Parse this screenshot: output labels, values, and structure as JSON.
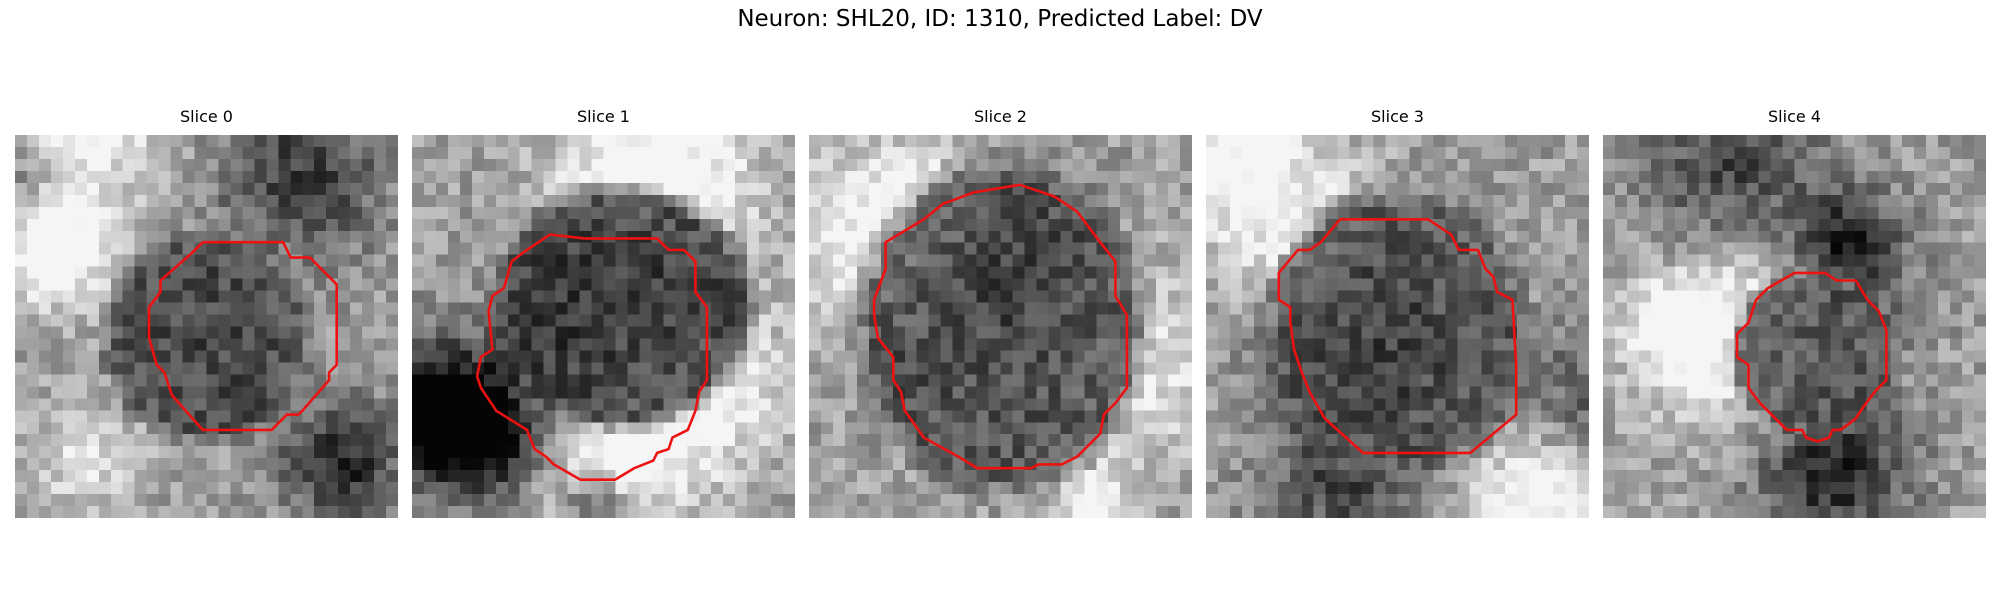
{
  "figure": {
    "title": "Neuron: SHL20, ID: 1310, Predicted Label: DV"
  },
  "outline_color": "#ee1111",
  "panels": [
    {
      "title": "Slice 0",
      "image": "grayscale-microscopy-patch",
      "center": [
        0.5,
        0.53
      ],
      "radius": [
        0.24,
        0.24
      ],
      "cell_shade": [
        0.22,
        0.28
      ],
      "outline": [
        [
          0.49,
          0.28
        ],
        [
          0.7,
          0.28
        ],
        [
          0.72,
          0.32
        ],
        [
          0.77,
          0.32
        ],
        [
          0.84,
          0.39
        ],
        [
          0.84,
          0.6
        ],
        [
          0.82,
          0.62
        ],
        [
          0.82,
          0.64
        ],
        [
          0.75,
          0.72
        ],
        [
          0.74,
          0.73
        ],
        [
          0.71,
          0.73
        ],
        [
          0.67,
          0.77
        ],
        [
          0.49,
          0.77
        ],
        [
          0.41,
          0.68
        ],
        [
          0.39,
          0.62
        ],
        [
          0.37,
          0.6
        ],
        [
          0.35,
          0.53
        ],
        [
          0.35,
          0.45
        ],
        [
          0.38,
          0.41
        ],
        [
          0.38,
          0.38
        ],
        [
          0.46,
          0.31
        ],
        [
          0.49,
          0.28
        ]
      ]
    },
    {
      "title": "Slice 1",
      "image": "grayscale-microscopy-patch",
      "center": [
        0.55,
        0.45
      ],
      "radius": [
        0.3,
        0.28
      ],
      "cell_shade": [
        0.12,
        0.2
      ],
      "outline": [
        [
          0.45,
          0.27
        ],
        [
          0.64,
          0.27
        ],
        [
          0.67,
          0.3
        ],
        [
          0.71,
          0.3
        ],
        [
          0.74,
          0.33
        ],
        [
          0.74,
          0.41
        ],
        [
          0.77,
          0.45
        ],
        [
          0.77,
          0.64
        ],
        [
          0.75,
          0.67
        ],
        [
          0.74,
          0.72
        ],
        [
          0.72,
          0.77
        ],
        [
          0.68,
          0.79
        ],
        [
          0.67,
          0.82
        ],
        [
          0.64,
          0.83
        ],
        [
          0.63,
          0.85
        ],
        [
          0.58,
          0.87
        ],
        [
          0.53,
          0.9
        ],
        [
          0.44,
          0.9
        ],
        [
          0.37,
          0.86
        ],
        [
          0.35,
          0.84
        ],
        [
          0.32,
          0.82
        ],
        [
          0.3,
          0.77
        ],
        [
          0.22,
          0.72
        ],
        [
          0.18,
          0.66
        ],
        [
          0.17,
          0.63
        ],
        [
          0.18,
          0.58
        ],
        [
          0.21,
          0.56
        ],
        [
          0.2,
          0.46
        ],
        [
          0.21,
          0.42
        ],
        [
          0.24,
          0.4
        ],
        [
          0.26,
          0.33
        ],
        [
          0.3,
          0.3
        ],
        [
          0.36,
          0.26
        ],
        [
          0.45,
          0.27
        ]
      ]
    },
    {
      "title": "Slice 2",
      "image": "grayscale-microscopy-patch",
      "center": [
        0.5,
        0.5
      ],
      "radius": [
        0.33,
        0.38
      ],
      "cell_shade": [
        0.25,
        0.3
      ],
      "outline": [
        [
          0.43,
          0.15
        ],
        [
          0.55,
          0.13
        ],
        [
          0.64,
          0.16
        ],
        [
          0.7,
          0.2
        ],
        [
          0.76,
          0.28
        ],
        [
          0.8,
          0.33
        ],
        [
          0.8,
          0.42
        ],
        [
          0.83,
          0.47
        ],
        [
          0.83,
          0.58
        ],
        [
          0.83,
          0.66
        ],
        [
          0.8,
          0.7
        ],
        [
          0.77,
          0.73
        ],
        [
          0.76,
          0.78
        ],
        [
          0.7,
          0.84
        ],
        [
          0.66,
          0.86
        ],
        [
          0.6,
          0.86
        ],
        [
          0.58,
          0.87
        ],
        [
          0.44,
          0.87
        ],
        [
          0.39,
          0.84
        ],
        [
          0.3,
          0.79
        ],
        [
          0.25,
          0.72
        ],
        [
          0.24,
          0.67
        ],
        [
          0.22,
          0.64
        ],
        [
          0.22,
          0.58
        ],
        [
          0.18,
          0.53
        ],
        [
          0.17,
          0.47
        ],
        [
          0.17,
          0.43
        ],
        [
          0.2,
          0.35
        ],
        [
          0.2,
          0.28
        ],
        [
          0.25,
          0.25
        ],
        [
          0.3,
          0.22
        ],
        [
          0.35,
          0.18
        ],
        [
          0.43,
          0.15
        ]
      ]
    },
    {
      "title": "Slice 3",
      "image": "grayscale-microscopy-patch",
      "center": [
        0.5,
        0.52
      ],
      "radius": [
        0.3,
        0.33
      ],
      "cell_shade": [
        0.28,
        0.32
      ],
      "outline": [
        [
          0.35,
          0.22
        ],
        [
          0.58,
          0.22
        ],
        [
          0.64,
          0.26
        ],
        [
          0.66,
          0.3
        ],
        [
          0.71,
          0.3
        ],
        [
          0.73,
          0.35
        ],
        [
          0.75,
          0.37
        ],
        [
          0.76,
          0.41
        ],
        [
          0.8,
          0.43
        ],
        [
          0.81,
          0.6
        ],
        [
          0.81,
          0.73
        ],
        [
          0.69,
          0.83
        ],
        [
          0.67,
          0.83
        ],
        [
          0.57,
          0.83
        ],
        [
          0.41,
          0.83
        ],
        [
          0.31,
          0.74
        ],
        [
          0.27,
          0.67
        ],
        [
          0.25,
          0.62
        ],
        [
          0.23,
          0.56
        ],
        [
          0.22,
          0.49
        ],
        [
          0.22,
          0.45
        ],
        [
          0.19,
          0.43
        ],
        [
          0.19,
          0.36
        ],
        [
          0.24,
          0.3
        ],
        [
          0.27,
          0.3
        ],
        [
          0.3,
          0.28
        ],
        [
          0.35,
          0.22
        ]
      ]
    },
    {
      "title": "Slice 4",
      "image": "grayscale-microscopy-patch",
      "center": [
        0.56,
        0.57
      ],
      "radius": [
        0.2,
        0.19
      ],
      "cell_shade": [
        0.3,
        0.34
      ],
      "outline": [
        [
          0.52,
          0.36
        ],
        [
          0.58,
          0.36
        ],
        [
          0.61,
          0.38
        ],
        [
          0.66,
          0.38
        ],
        [
          0.69,
          0.43
        ],
        [
          0.72,
          0.46
        ],
        [
          0.74,
          0.51
        ],
        [
          0.74,
          0.64
        ],
        [
          0.71,
          0.67
        ],
        [
          0.68,
          0.71
        ],
        [
          0.66,
          0.74
        ],
        [
          0.62,
          0.77
        ],
        [
          0.6,
          0.77
        ],
        [
          0.59,
          0.79
        ],
        [
          0.56,
          0.8
        ],
        [
          0.53,
          0.79
        ],
        [
          0.52,
          0.77
        ],
        [
          0.48,
          0.77
        ],
        [
          0.44,
          0.73
        ],
        [
          0.41,
          0.7
        ],
        [
          0.38,
          0.66
        ],
        [
          0.38,
          0.6
        ],
        [
          0.35,
          0.58
        ],
        [
          0.35,
          0.52
        ],
        [
          0.38,
          0.49
        ],
        [
          0.4,
          0.43
        ],
        [
          0.43,
          0.4
        ],
        [
          0.5,
          0.36
        ],
        [
          0.52,
          0.36
        ]
      ]
    }
  ]
}
